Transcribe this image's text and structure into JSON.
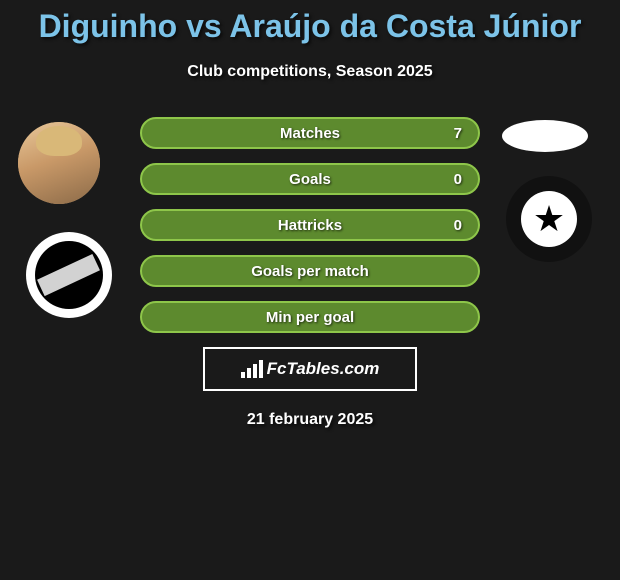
{
  "title": "Diguinho vs Araújo da Costa Júnior",
  "subtitle": "Club competitions, Season 2025",
  "stats": [
    {
      "label": "Matches",
      "value": "7"
    },
    {
      "label": "Goals",
      "value": "0"
    },
    {
      "label": "Hattricks",
      "value": "0"
    },
    {
      "label": "Goals per match",
      "value": ""
    },
    {
      "label": "Min per goal",
      "value": ""
    }
  ],
  "brand": "FcTables.com",
  "date": "21 february 2025",
  "colors": {
    "bg": "#1a1a1a",
    "title": "#7cc3e8",
    "pill_border": "#8ec64a",
    "pill_fill": "#5d8a2e",
    "text": "#ffffff"
  }
}
